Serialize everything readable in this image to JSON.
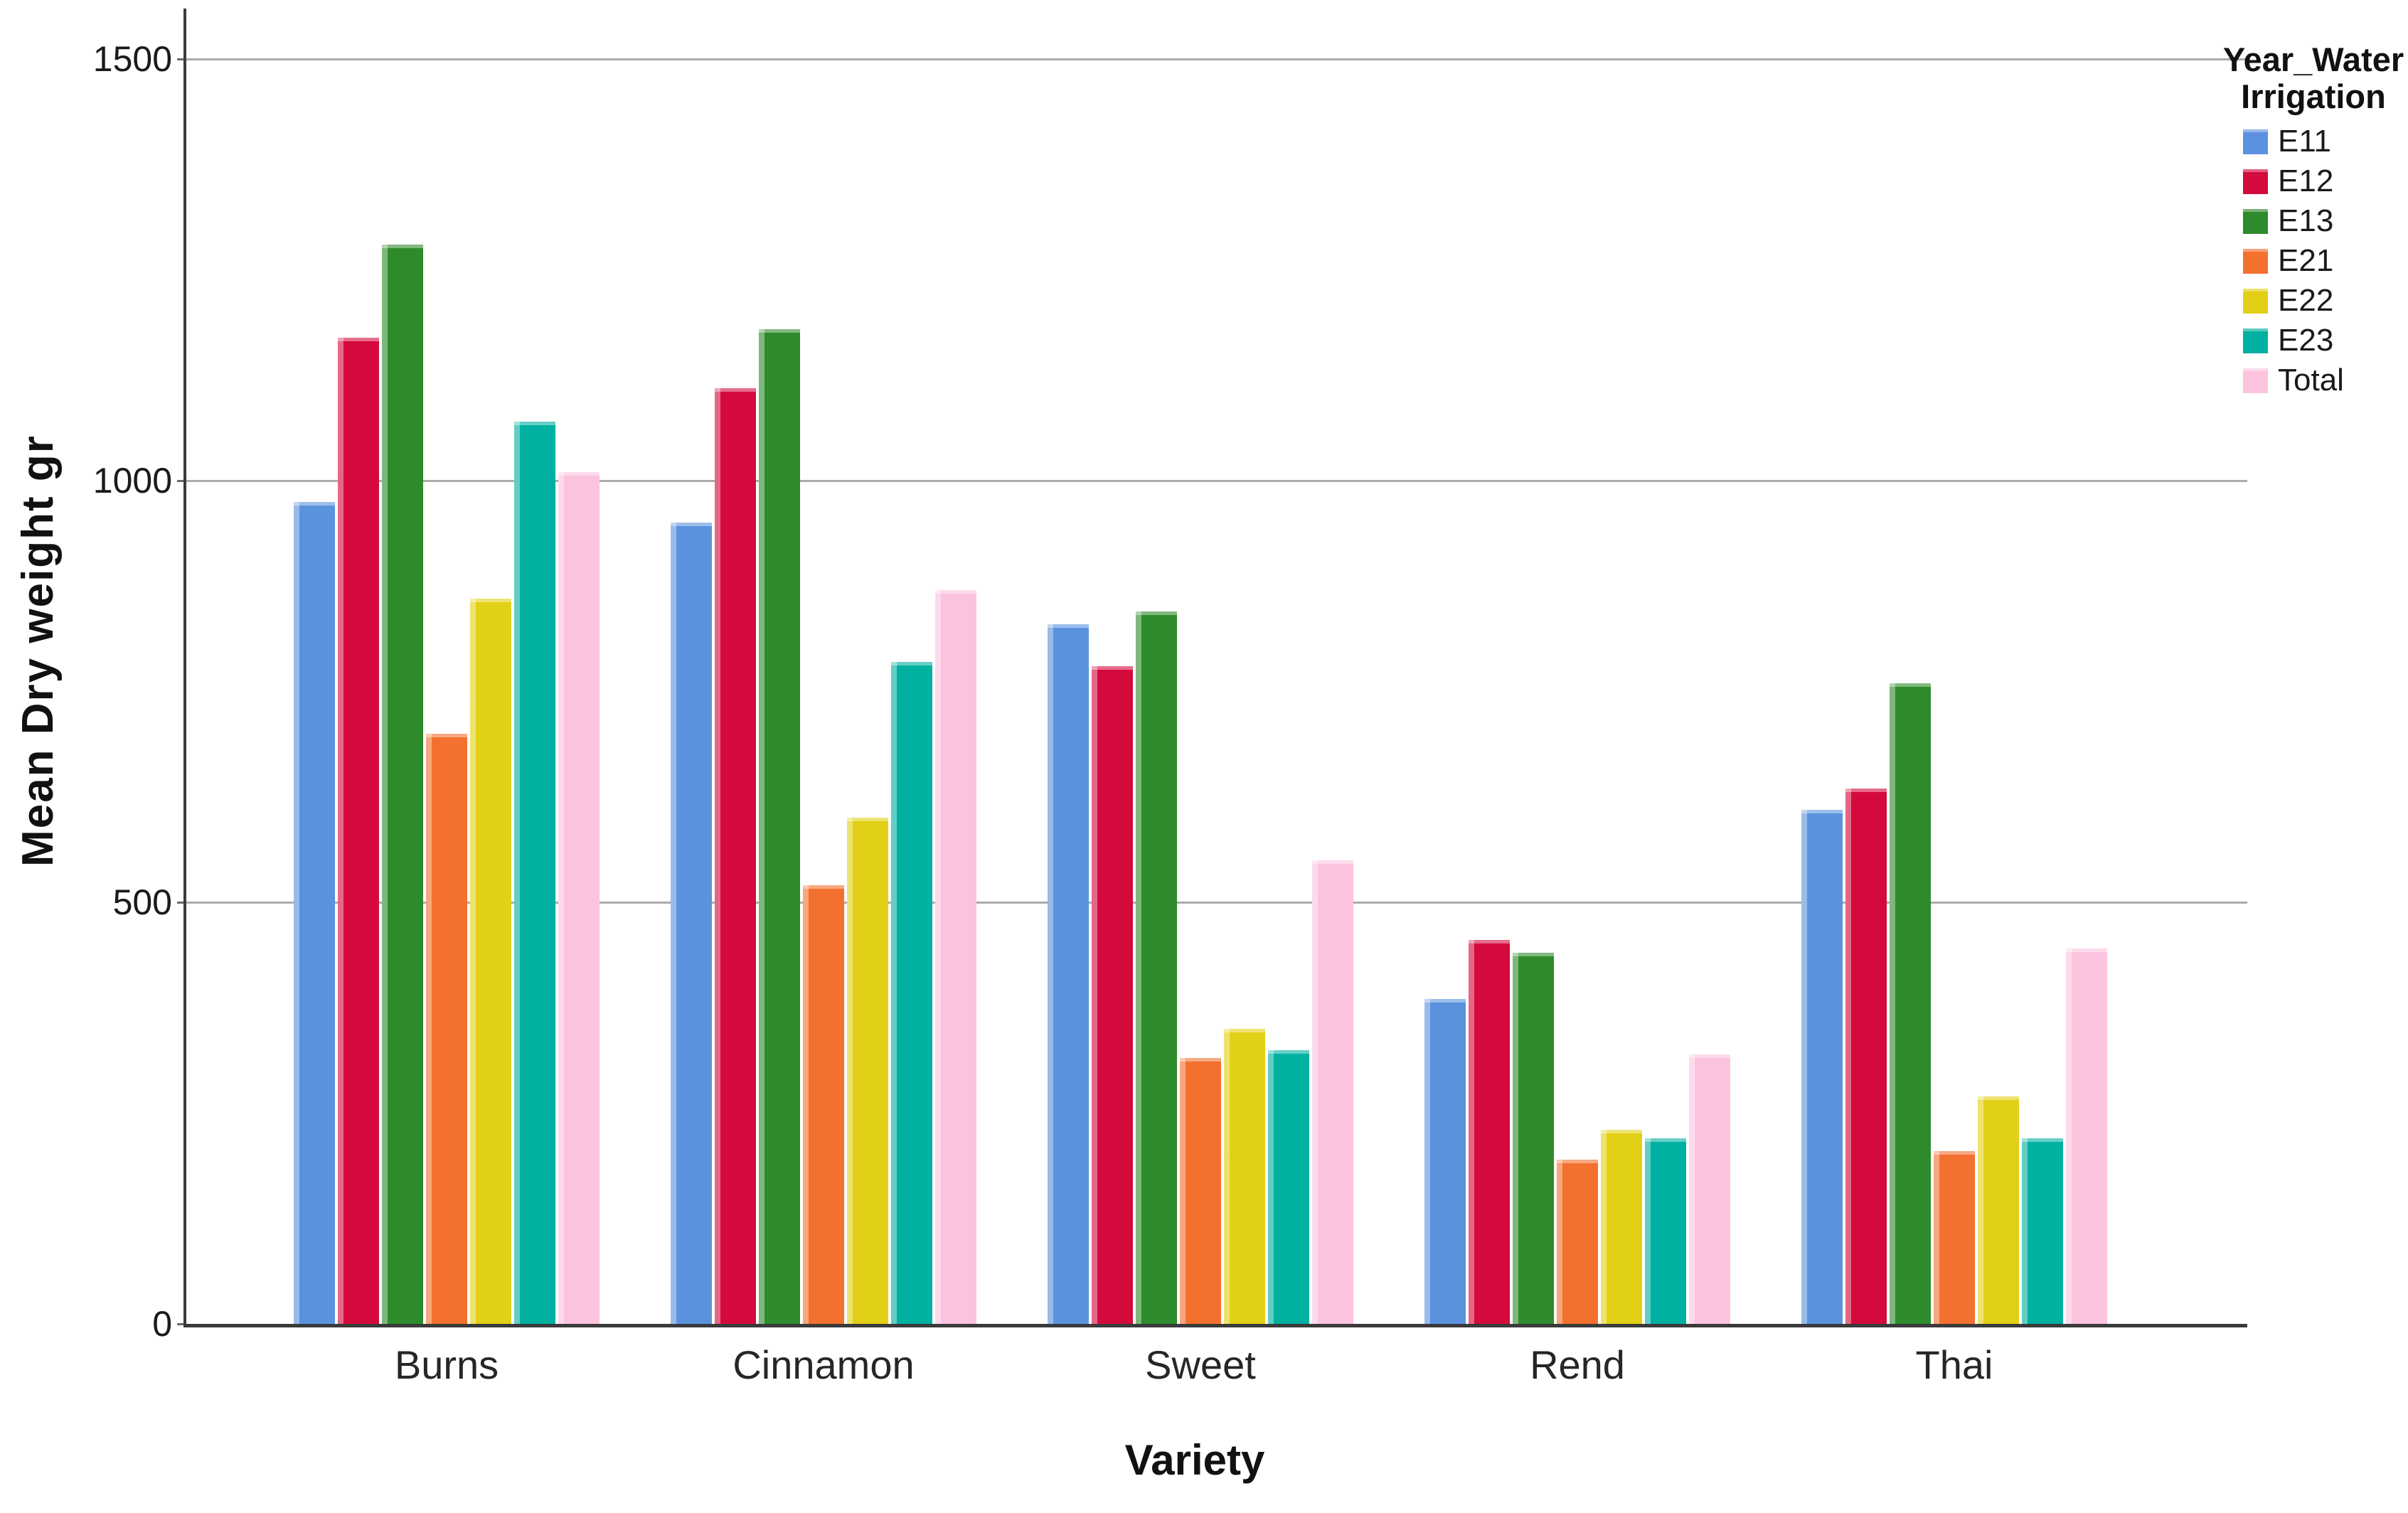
{
  "chart_data": {
    "type": "bar",
    "title": "",
    "xlabel": "Variety",
    "ylabel": "Mean Dry weight gr",
    "categories": [
      "Burns",
      "Cinnamon",
      "Sweet",
      "Rend",
      "Thai"
    ],
    "series": [
      {
        "name": "E11",
        "color": "#5B92DE",
        "values": [
          975,
          950,
          830,
          385,
          610
        ]
      },
      {
        "name": "E12",
        "color": "#D50A3C",
        "values": [
          1170,
          1110,
          780,
          455,
          635
        ]
      },
      {
        "name": "E13",
        "color": "#2E8B2B",
        "values": [
          1280,
          1180,
          845,
          440,
          760
        ]
      },
      {
        "name": "E21",
        "color": "#F4702E",
        "values": [
          700,
          520,
          315,
          195,
          205
        ]
      },
      {
        "name": "E22",
        "color": "#E2D016",
        "values": [
          860,
          600,
          350,
          230,
          270
        ]
      },
      {
        "name": "E23",
        "color": "#00B0A0",
        "values": [
          1070,
          785,
          325,
          220,
          220
        ]
      },
      {
        "name": "Total",
        "color": "#FCC3DF",
        "values": [
          1010,
          870,
          550,
          320,
          445
        ]
      }
    ],
    "ylim": [
      0,
      1560
    ],
    "yticks": [
      0,
      500,
      1000,
      1500
    ],
    "ytick_labels": [
      "0",
      "500",
      "1000",
      "1500"
    ],
    "grid": true,
    "legend_position": "right",
    "legend_title_line1": "Year_Water",
    "legend_title_line2": "Irrigation",
    "axis_color": "#3a3a3a",
    "gridline_color": "#ababab"
  }
}
